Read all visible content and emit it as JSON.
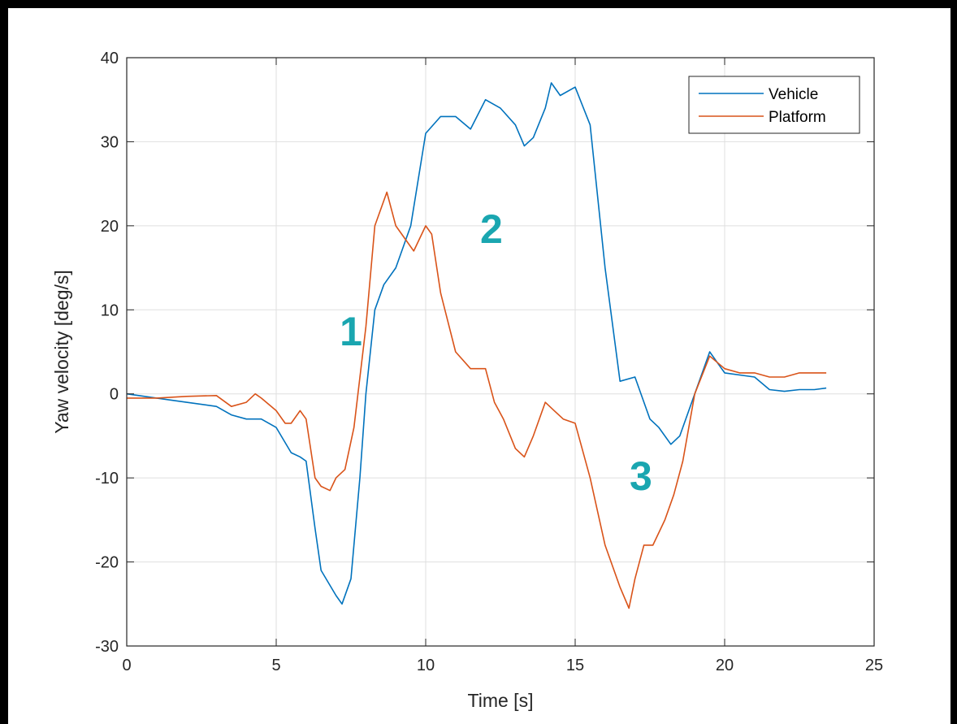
{
  "chart_data": {
    "type": "line",
    "title": "",
    "xlabel": "Time [s]",
    "ylabel": "Yaw velocity [deg/s]",
    "xlim": [
      0,
      25
    ],
    "ylim": [
      -30,
      40
    ],
    "xticks": [
      0,
      5,
      10,
      15,
      20,
      25
    ],
    "yticks": [
      -30,
      -20,
      -10,
      0,
      10,
      20,
      30,
      40
    ],
    "grid": true,
    "legend_position": "top-right",
    "colors": {
      "Vehicle": "#0072bd",
      "Platform": "#d95319",
      "annotation": "#1aa6b0"
    },
    "series": [
      {
        "name": "Vehicle",
        "x": [
          0,
          1,
          2,
          3,
          3.5,
          4,
          4.5,
          5,
          5.5,
          5.8,
          6,
          6.3,
          6.5,
          7,
          7.2,
          7.5,
          7.8,
          8,
          8.3,
          8.6,
          9,
          9.5,
          10,
          10.5,
          11,
          11.5,
          12,
          12.5,
          13,
          13.3,
          13.6,
          14,
          14.2,
          14.5,
          15,
          15.5,
          16,
          16.5,
          17,
          17.5,
          17.8,
          18.2,
          18.5,
          19,
          19.5,
          20,
          21,
          21.5,
          22,
          22.5,
          23,
          23.4
        ],
        "y": [
          0,
          -0.5,
          -1,
          -1.5,
          -2.5,
          -3,
          -3,
          -4,
          -7,
          -7.5,
          -8,
          -16,
          -21,
          -24,
          -25,
          -22,
          -10,
          0,
          10,
          13,
          15,
          20,
          31,
          33,
          33,
          31.5,
          35,
          34,
          32,
          29.5,
          30.5,
          34,
          37,
          35.5,
          36.5,
          32,
          15,
          1.5,
          2,
          -3,
          -4,
          -6,
          -5,
          0,
          5,
          2.5,
          2,
          0.5,
          0.3,
          0.5,
          0.5,
          0.7
        ]
      },
      {
        "name": "Platform",
        "x": [
          0,
          1,
          2,
          3,
          3.5,
          4,
          4.3,
          4.5,
          5,
          5.3,
          5.5,
          5.8,
          6,
          6.3,
          6.5,
          6.8,
          7,
          7.3,
          7.6,
          8,
          8.3,
          8.7,
          9,
          9.3,
          9.6,
          10,
          10.2,
          10.5,
          11,
          11.5,
          12,
          12.3,
          12.6,
          13,
          13.3,
          13.6,
          14,
          14.3,
          14.6,
          15,
          15.5,
          16,
          16.5,
          16.8,
          17,
          17.3,
          17.6,
          18,
          18.3,
          18.6,
          19,
          19.5,
          20,
          20.5,
          21,
          21.5,
          22,
          22.5,
          23,
          23.4
        ],
        "y": [
          -0.5,
          -0.5,
          -0.3,
          -0.2,
          -1.5,
          -1,
          0,
          -0.5,
          -2,
          -3.5,
          -3.5,
          -2,
          -3,
          -10,
          -11,
          -11.5,
          -10,
          -9,
          -4,
          8,
          20,
          24,
          20,
          18.5,
          17,
          20,
          19,
          12,
          5,
          3,
          3,
          -1,
          -3,
          -6.5,
          -7.5,
          -5,
          -1,
          -2,
          -3,
          -3.5,
          -10,
          -18,
          -23,
          -25.5,
          -22,
          -18,
          -18,
          -15,
          -12,
          -8,
          0,
          4.5,
          3,
          2.5,
          2.5,
          2,
          2,
          2.5,
          2.5,
          2.5
        ]
      }
    ],
    "annotations": [
      {
        "text": "1",
        "x": 7.5,
        "y": 7.5
      },
      {
        "text": "2",
        "x": 12.2,
        "y": 19.7
      },
      {
        "text": "3",
        "x": 17.2,
        "y": -9.7
      }
    ]
  }
}
